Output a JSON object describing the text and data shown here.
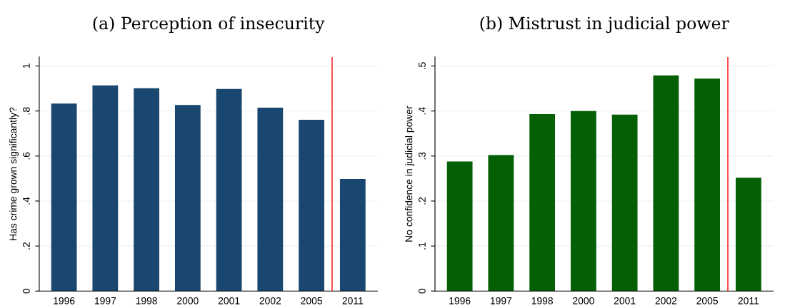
{
  "chart_data": [
    {
      "type": "bar",
      "title": "(a) Perception of insecurity",
      "ylabel": "Has crime grown significantly?",
      "categories": [
        "1996",
        "1997",
        "1998",
        "2000",
        "2001",
        "2002",
        "2005",
        "2011"
      ],
      "values": [
        0.833,
        0.914,
        0.901,
        0.827,
        0.898,
        0.815,
        0.761,
        0.498
      ],
      "color": "#1a476f",
      "ref_lines": [
        {
          "axis": "x",
          "value": "2011",
          "color": "#ff0000"
        }
      ],
      "ylim": [
        0,
        1.04
      ],
      "yticks": [
        0,
        {
          "value": 0.2,
          "label": ".2"
        },
        {
          "value": 0.4,
          "label": ".4"
        },
        {
          "value": 0.6,
          "label": ".6"
        },
        {
          "value": 0.8,
          "label": ".8"
        },
        1
      ],
      "grid": "y"
    },
    {
      "type": "bar",
      "title": "(b) Mistrust in judicial power",
      "ylabel": "No confidence in judicial power",
      "categories": [
        "1996",
        "1997",
        "1998",
        "2000",
        "2001",
        "2002",
        "2005",
        "2011"
      ],
      "values": [
        0.288,
        0.302,
        0.393,
        0.4,
        0.392,
        0.479,
        0.472,
        0.252
      ],
      "color": "#055f05",
      "ref_lines": [
        {
          "axis": "x",
          "value": "2011",
          "color": "#ff0000"
        }
      ],
      "ylim": [
        0,
        0.52
      ],
      "yticks": [
        0,
        {
          "value": 0.1,
          "label": ".1"
        },
        {
          "value": 0.2,
          "label": ".2"
        },
        {
          "value": 0.3,
          "label": ".3"
        },
        {
          "value": 0.4,
          "label": ".4"
        },
        {
          "value": 0.5,
          "label": ".5"
        }
      ],
      "grid": "y"
    }
  ]
}
